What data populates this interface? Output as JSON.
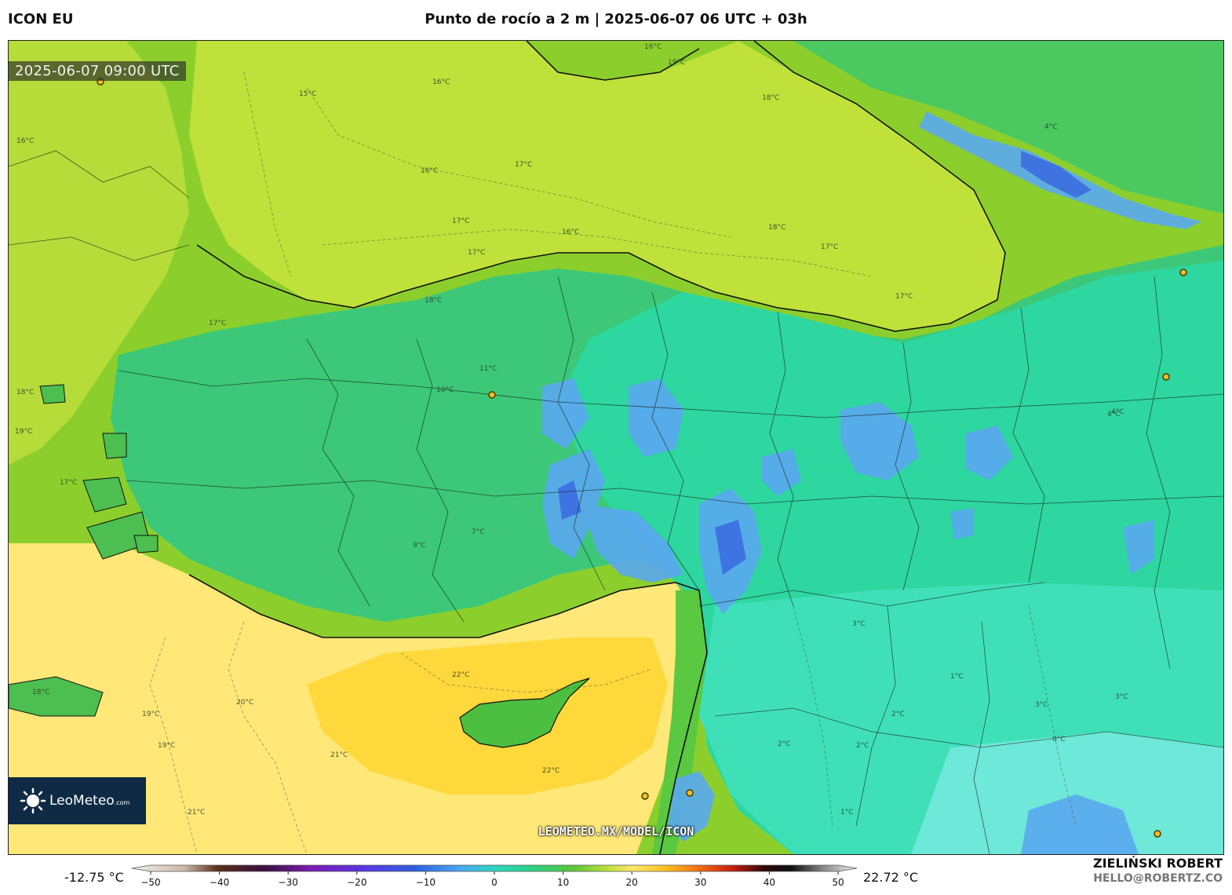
{
  "header": {
    "model_name": "ICON EU",
    "title": "Punto de rocío a 2 m | 2025-06-07 06 UTC + 03h"
  },
  "map": {
    "timestamp": "2025-06-07 09:00 UTC",
    "watermark": "LEOMETEO.MX/MODEL/ICON",
    "logo": {
      "brand": "LeoMeteo",
      "suffix": ".com",
      "icon": "sun-icon"
    },
    "contour_labels": [
      "16°C",
      "15°C",
      "19°C",
      "18°C",
      "16°C",
      "16°C",
      "17°C",
      "17°C",
      "16°C",
      "18°C",
      "17°C",
      "17°C",
      "18°C",
      "17°C",
      "17°C",
      "11°C",
      "10°C",
      "16°C",
      "18°C",
      "19°C",
      "17°C",
      "22°C",
      "20°C",
      "19°C",
      "21°C",
      "22°C",
      "21°C",
      "19°C",
      "18°C",
      "4°C",
      "4°C",
      "3°C",
      "2°C",
      "2°C",
      "3°C",
      "1°C",
      "0°C",
      "3°C",
      "1°C",
      "2°C",
      "4°C",
      "7°C",
      "9°C"
    ],
    "colors": {
      "sea_yellow_green": "#bfe13a",
      "land_green": "#6fcf3c",
      "teal": "#2ed6a0",
      "blue": "#4a8ff0",
      "warm_yellow": "#ffe066",
      "orange_yellow": "#ffd23a"
    }
  },
  "colorbar": {
    "min_label": "-12.75 °C",
    "max_label": "22.72 °C",
    "ticks": [
      "−50",
      "−40",
      "−30",
      "−20",
      "−10",
      "0",
      "10",
      "20",
      "30",
      "40",
      "50"
    ],
    "tick_values": [
      -50,
      -40,
      -30,
      -20,
      -10,
      0,
      10,
      20,
      30,
      40,
      50
    ],
    "range": [
      -55,
      55
    ],
    "stops": [
      {
        "v": -55,
        "c": "#f4f1ec"
      },
      {
        "v": -47,
        "c": "#c8b8a6"
      },
      {
        "v": -42,
        "c": "#5a2e1a"
      },
      {
        "v": -35,
        "c": "#3a1040"
      },
      {
        "v": -28,
        "c": "#7a1ab0"
      },
      {
        "v": -20,
        "c": "#5a35e0"
      },
      {
        "v": -12,
        "c": "#2f5fe0"
      },
      {
        "v": -5,
        "c": "#4aa8f0"
      },
      {
        "v": 0,
        "c": "#2ed6c0"
      },
      {
        "v": 6,
        "c": "#2ecf80"
      },
      {
        "v": 12,
        "c": "#5ac83a"
      },
      {
        "v": 17,
        "c": "#b8e03a"
      },
      {
        "v": 21,
        "c": "#ffe66a"
      },
      {
        "v": 26,
        "c": "#ffc020"
      },
      {
        "v": 31,
        "c": "#f07010"
      },
      {
        "v": 36,
        "c": "#c82010"
      },
      {
        "v": 41,
        "c": "#300808"
      },
      {
        "v": 45,
        "c": "#101010"
      },
      {
        "v": 50,
        "c": "#8a8a8a"
      },
      {
        "v": 55,
        "c": "#f0f0f0"
      }
    ]
  },
  "author": {
    "name": "ZIELIŃSKI ROBERT",
    "email": "HELLO@ROBERTZ.CO"
  }
}
